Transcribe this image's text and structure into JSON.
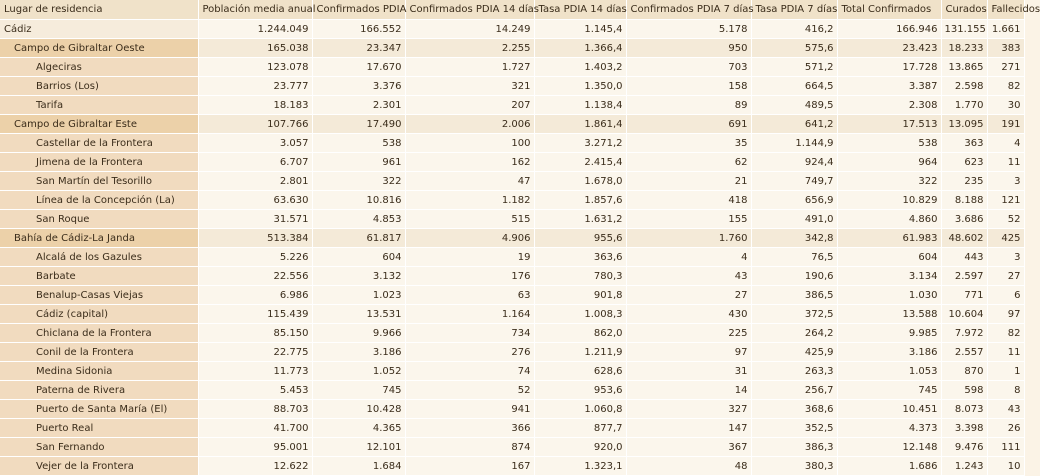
{
  "columns": [
    "Lugar de residencia",
    "Población media anual",
    "Confirmados PDIA",
    "Confirmados PDIA 14 días",
    "Tasa PDIA 14 días",
    "Confirmados PDIA 7 días",
    "Tasa PDIA 7 días",
    "Total Confirmados",
    "Curados",
    "Fallecidos"
  ],
  "rows": [
    {
      "level": 0,
      "cells": [
        "Cádiz",
        "1.244.049",
        "166.552",
        "14.249",
        "1.145,4",
        "5.178",
        "416,2",
        "166.946",
        "131.155",
        "1.661"
      ]
    },
    {
      "level": 1,
      "cells": [
        "Campo de Gibraltar Oeste",
        "165.038",
        "23.347",
        "2.255",
        "1.366,4",
        "950",
        "575,6",
        "23.423",
        "18.233",
        "383"
      ]
    },
    {
      "level": 2,
      "cells": [
        "Algeciras",
        "123.078",
        "17.670",
        "1.727",
        "1.403,2",
        "703",
        "571,2",
        "17.728",
        "13.865",
        "271"
      ]
    },
    {
      "level": 2,
      "cells": [
        "Barrios (Los)",
        "23.777",
        "3.376",
        "321",
        "1.350,0",
        "158",
        "664,5",
        "3.387",
        "2.598",
        "82"
      ]
    },
    {
      "level": 2,
      "cells": [
        "Tarifa",
        "18.183",
        "2.301",
        "207",
        "1.138,4",
        "89",
        "489,5",
        "2.308",
        "1.770",
        "30"
      ]
    },
    {
      "level": 1,
      "cells": [
        "Campo de Gibraltar Este",
        "107.766",
        "17.490",
        "2.006",
        "1.861,4",
        "691",
        "641,2",
        "17.513",
        "13.095",
        "191"
      ]
    },
    {
      "level": 2,
      "cells": [
        "Castellar de la Frontera",
        "3.057",
        "538",
        "100",
        "3.271,2",
        "35",
        "1.144,9",
        "538",
        "363",
        "4"
      ]
    },
    {
      "level": 2,
      "cells": [
        "Jimena de la Frontera",
        "6.707",
        "961",
        "162",
        "2.415,4",
        "62",
        "924,4",
        "964",
        "623",
        "11"
      ]
    },
    {
      "level": 2,
      "cells": [
        "San Martín del Tesorillo",
        "2.801",
        "322",
        "47",
        "1.678,0",
        "21",
        "749,7",
        "322",
        "235",
        "3"
      ]
    },
    {
      "level": 2,
      "cells": [
        "Línea de la Concepción (La)",
        "63.630",
        "10.816",
        "1.182",
        "1.857,6",
        "418",
        "656,9",
        "10.829",
        "8.188",
        "121"
      ]
    },
    {
      "level": 2,
      "cells": [
        "San Roque",
        "31.571",
        "4.853",
        "515",
        "1.631,2",
        "155",
        "491,0",
        "4.860",
        "3.686",
        "52"
      ]
    },
    {
      "level": 1,
      "cells": [
        "Bahía de Cádiz-La Janda",
        "513.384",
        "61.817",
        "4.906",
        "955,6",
        "1.760",
        "342,8",
        "61.983",
        "48.602",
        "425"
      ]
    },
    {
      "level": 2,
      "cells": [
        "Alcalá de los Gazules",
        "5.226",
        "604",
        "19",
        "363,6",
        "4",
        "76,5",
        "604",
        "443",
        "3"
      ]
    },
    {
      "level": 2,
      "cells": [
        "Barbate",
        "22.556",
        "3.132",
        "176",
        "780,3",
        "43",
        "190,6",
        "3.134",
        "2.597",
        "27"
      ]
    },
    {
      "level": 2,
      "cells": [
        "Benalup-Casas Viejas",
        "6.986",
        "1.023",
        "63",
        "901,8",
        "27",
        "386,5",
        "1.030",
        "771",
        "6"
      ]
    },
    {
      "level": 2,
      "cells": [
        "Cádiz (capital)",
        "115.439",
        "13.531",
        "1.164",
        "1.008,3",
        "430",
        "372,5",
        "13.588",
        "10.604",
        "97"
      ]
    },
    {
      "level": 2,
      "cells": [
        "Chiclana de la Frontera",
        "85.150",
        "9.966",
        "734",
        "862,0",
        "225",
        "264,2",
        "9.985",
        "7.972",
        "82"
      ]
    },
    {
      "level": 2,
      "cells": [
        "Conil de la Frontera",
        "22.775",
        "3.186",
        "276",
        "1.211,9",
        "97",
        "425,9",
        "3.186",
        "2.557",
        "11"
      ]
    },
    {
      "level": 2,
      "cells": [
        "Medina Sidonia",
        "11.773",
        "1.052",
        "74",
        "628,6",
        "31",
        "263,3",
        "1.053",
        "870",
        "1"
      ]
    },
    {
      "level": 2,
      "cells": [
        "Paterna de Rivera",
        "5.453",
        "745",
        "52",
        "953,6",
        "14",
        "256,7",
        "745",
        "598",
        "8"
      ]
    },
    {
      "level": 2,
      "cells": [
        "Puerto de Santa María (El)",
        "88.703",
        "10.428",
        "941",
        "1.060,8",
        "327",
        "368,6",
        "10.451",
        "8.073",
        "43"
      ]
    },
    {
      "level": 2,
      "cells": [
        "Puerto Real",
        "41.700",
        "4.365",
        "366",
        "877,7",
        "147",
        "352,5",
        "4.373",
        "3.398",
        "26"
      ]
    },
    {
      "level": 2,
      "cells": [
        "San Fernando",
        "95.001",
        "12.101",
        "874",
        "920,0",
        "367",
        "386,3",
        "12.148",
        "9.476",
        "111"
      ]
    },
    {
      "level": 2,
      "cells": [
        "Vejer de la Frontera",
        "12.622",
        "1.684",
        "167",
        "1.323,1",
        "48",
        "380,3",
        "1.686",
        "1.243",
        "10"
      ]
    }
  ]
}
